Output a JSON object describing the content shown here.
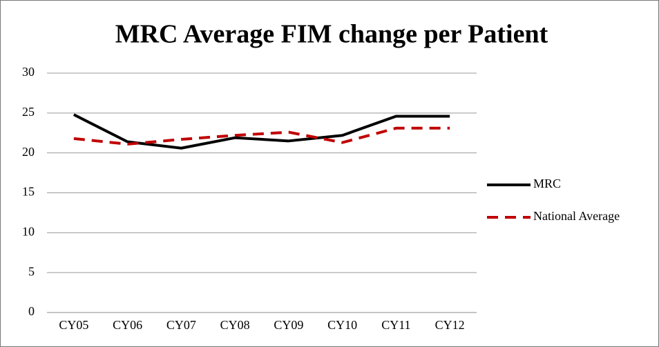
{
  "chart_data": {
    "type": "line",
    "title": "MRC Average FIM change per Patient",
    "categories": [
      "CY05",
      "CY06",
      "CY07",
      "CY08",
      "CY09",
      "CY10",
      "CY11",
      "CY12"
    ],
    "series": [
      {
        "name": "MRC",
        "color": "#000000",
        "dash": false,
        "values": [
          24.8,
          21.4,
          20.6,
          21.9,
          21.5,
          22.2,
          24.6,
          24.6
        ]
      },
      {
        "name": "National Average",
        "color": "#c00000",
        "dash": true,
        "values": [
          21.8,
          21.1,
          21.7,
          22.2,
          22.6,
          21.3,
          23.1,
          23.1
        ]
      }
    ],
    "ylim": [
      0,
      30
    ],
    "yticks": [
      0,
      5,
      10,
      15,
      20,
      25,
      30
    ],
    "grid": true,
    "legend": "right"
  }
}
